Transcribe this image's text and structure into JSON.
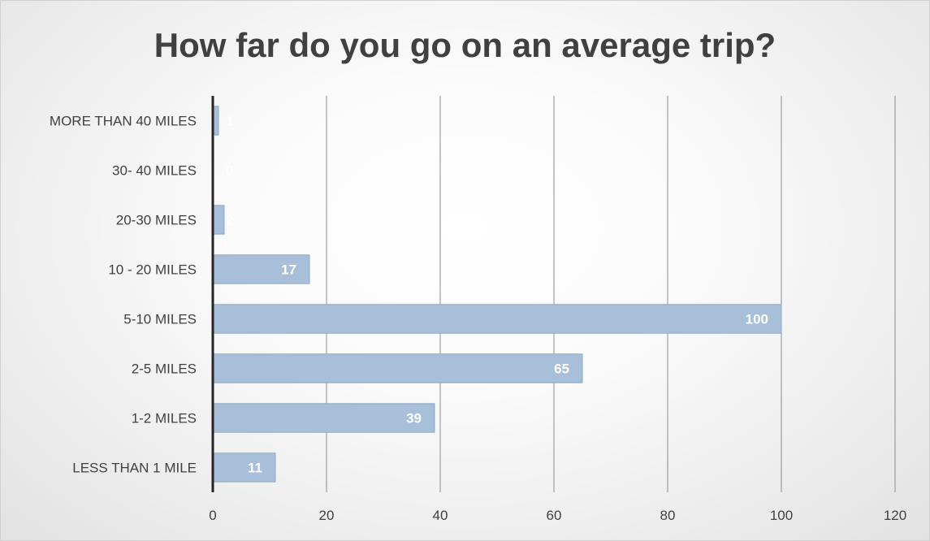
{
  "chart_data": {
    "type": "bar",
    "orientation": "horizontal",
    "title": "How far do you go on an average trip?",
    "categories": [
      "LESS THAN 1 MILE",
      "1-2 MILES",
      "2-5 MILES",
      "5-10 MILES",
      "10 - 20 MILES",
      "20-30 MILES",
      "30- 40 MILES",
      "MORE THAN 40 MILES"
    ],
    "values": [
      11,
      39,
      65,
      100,
      17,
      2,
      0,
      1
    ],
    "xlim": [
      0,
      120
    ],
    "xticks": [
      0,
      20,
      40,
      60,
      80,
      100,
      120
    ],
    "xlabel": "",
    "ylabel": "",
    "grid": "vertical",
    "legend": "none",
    "data_labels": true,
    "bar_color": "#a7bfd8",
    "bar_edge_color": "#8fa9c6",
    "axis_color": "#262626",
    "grid_color": "#8c8c8c"
  }
}
